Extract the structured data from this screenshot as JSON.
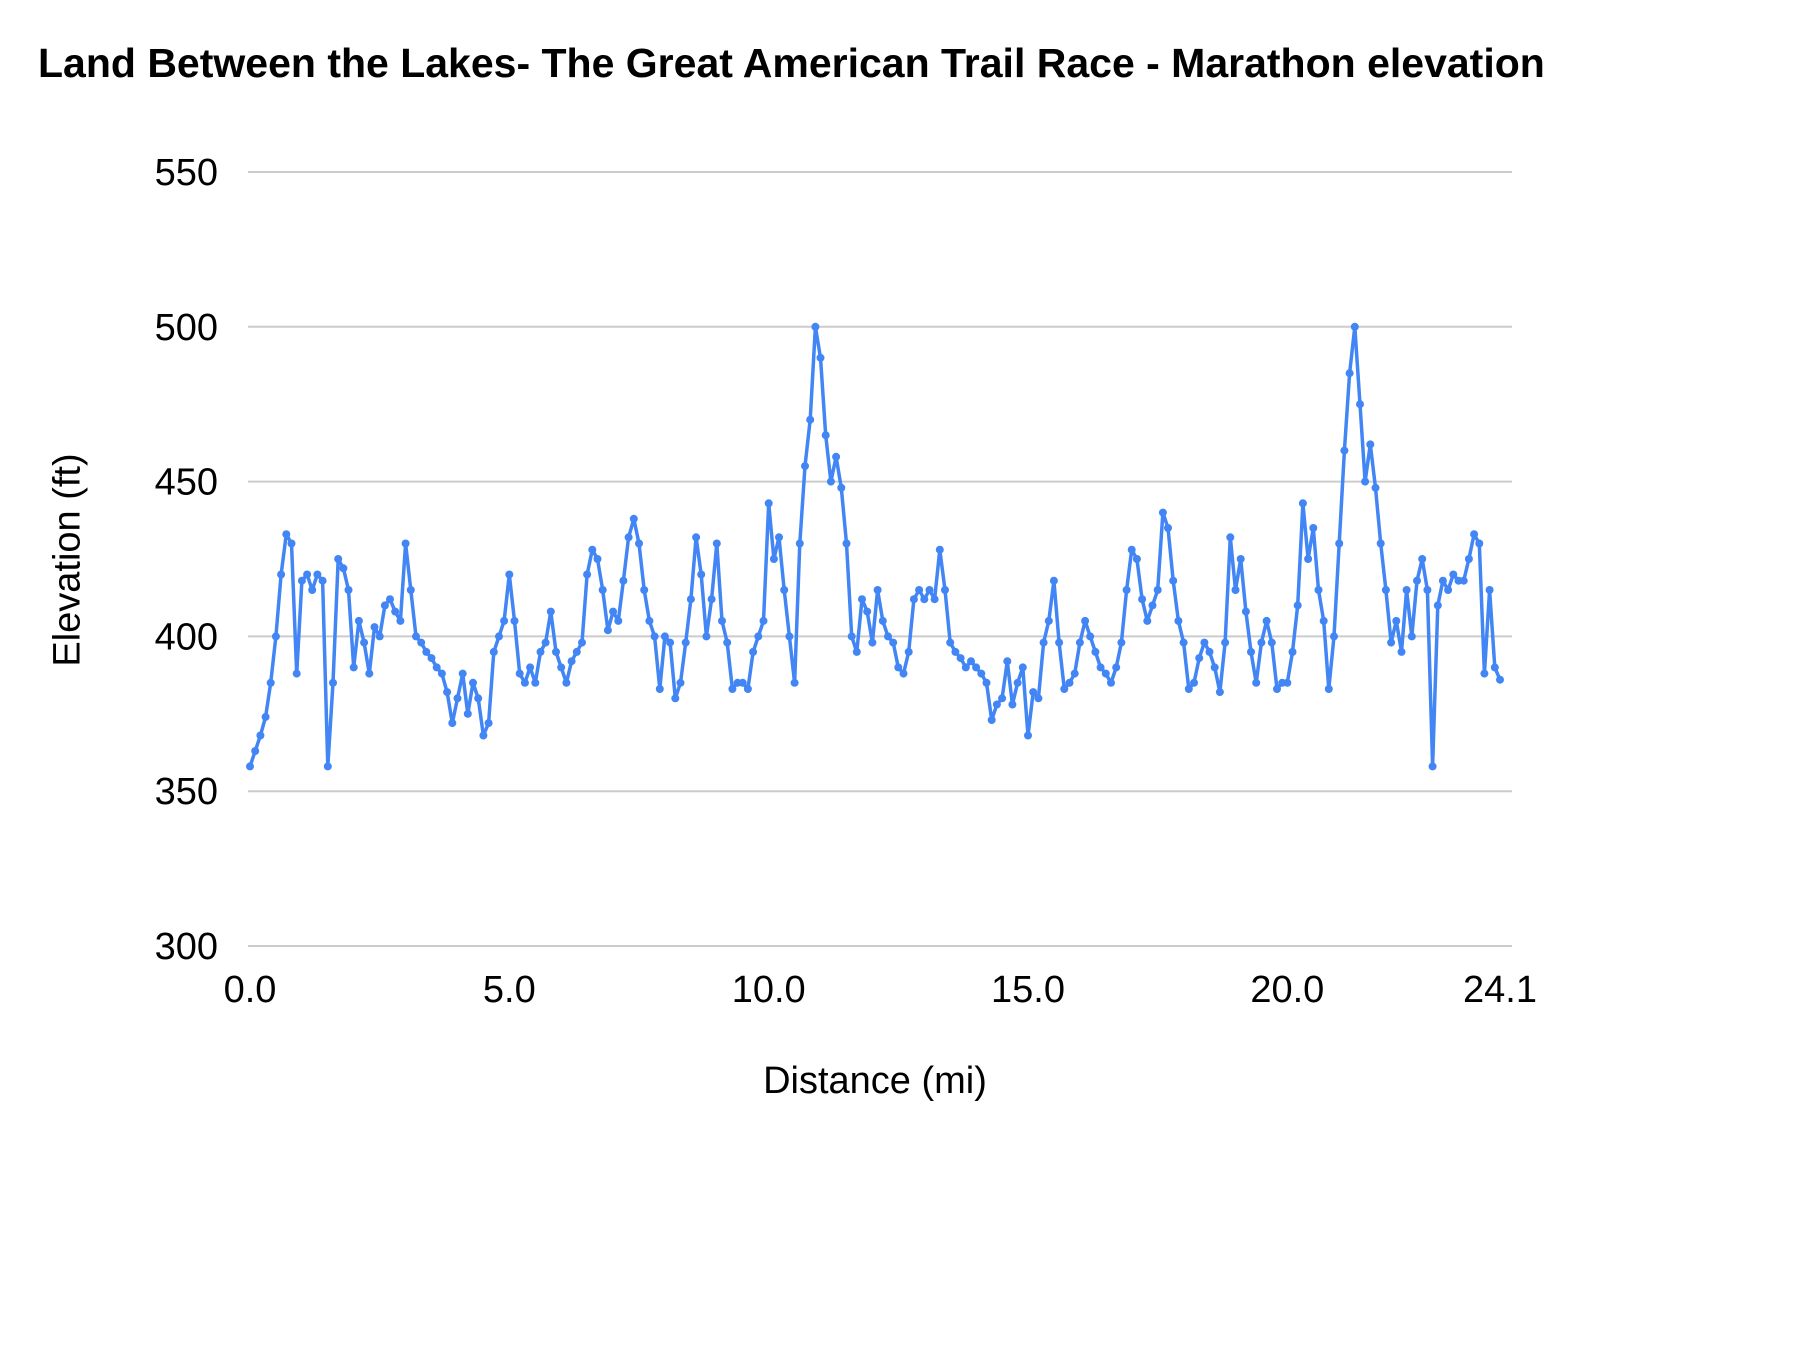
{
  "chart_data": {
    "type": "line",
    "title": "Land Between the Lakes- The Great American Trail Race - Marathon elevation",
    "xlabel": "Distance (mi)",
    "ylabel": "Elevation (ft)",
    "xlim": [
      0,
      24.1
    ],
    "ylim": [
      300,
      550
    ],
    "grid": true,
    "legend": "none",
    "line_color": "#4285f4",
    "grid_color": "#cccccc",
    "point_radius": 4,
    "line_width": 3.5,
    "xtick_values": [
      0,
      5,
      10,
      15,
      20,
      24.1
    ],
    "xtick_labels": [
      "0.0",
      "5.0",
      "10.0",
      "15.0",
      "20.0",
      "24.1"
    ],
    "ytick_values": [
      300,
      350,
      400,
      450,
      500,
      550
    ],
    "ytick_labels": [
      "300",
      "350",
      "400",
      "450",
      "500",
      "550"
    ],
    "x_start": 0.0,
    "x_step": 0.1,
    "values": [
      358,
      363,
      368,
      374,
      385,
      400,
      420,
      433,
      430,
      388,
      418,
      420,
      415,
      420,
      418,
      358,
      385,
      425,
      422,
      415,
      390,
      405,
      398,
      388,
      403,
      400,
      410,
      412,
      408,
      405,
      430,
      415,
      400,
      398,
      395,
      393,
      390,
      388,
      382,
      372,
      380,
      388,
      375,
      385,
      380,
      368,
      372,
      395,
      400,
      405,
      420,
      405,
      388,
      385,
      390,
      385,
      395,
      398,
      408,
      395,
      390,
      385,
      392,
      395,
      398,
      420,
      428,
      425,
      415,
      402,
      408,
      405,
      418,
      432,
      438,
      430,
      415,
      405,
      400,
      383,
      400,
      398,
      380,
      385,
      398,
      412,
      432,
      420,
      400,
      412,
      430,
      405,
      398,
      383,
      385,
      385,
      383,
      395,
      400,
      405,
      443,
      425,
      432,
      415,
      400,
      385,
      430,
      455,
      470,
      500,
      490,
      465,
      450,
      458,
      448,
      430,
      400,
      395,
      412,
      408,
      398,
      415,
      405,
      400,
      398,
      390,
      388,
      395,
      412,
      415,
      412,
      415,
      412,
      428,
      415,
      398,
      395,
      393,
      390,
      392,
      390,
      388,
      385,
      373,
      378,
      380,
      392,
      378,
      385,
      390,
      368,
      382,
      380,
      398,
      405,
      418,
      398,
      383,
      385,
      388,
      398,
      405,
      400,
      395,
      390,
      388,
      385,
      390,
      398,
      415,
      428,
      425,
      412,
      405,
      410,
      415,
      440,
      435,
      418,
      405,
      398,
      383,
      385,
      393,
      398,
      395,
      390,
      382,
      398,
      432,
      415,
      425,
      408,
      395,
      385,
      398,
      405,
      398,
      383,
      385,
      385,
      395,
      410,
      443,
      425,
      435,
      415,
      405,
      383,
      400,
      430,
      460,
      485,
      500,
      475,
      450,
      462,
      448,
      430,
      415,
      398,
      405,
      395,
      415,
      400,
      418,
      425,
      415,
      358,
      410,
      418,
      415,
      420,
      418,
      418,
      425,
      433,
      430,
      388,
      415,
      390,
      386
    ]
  }
}
